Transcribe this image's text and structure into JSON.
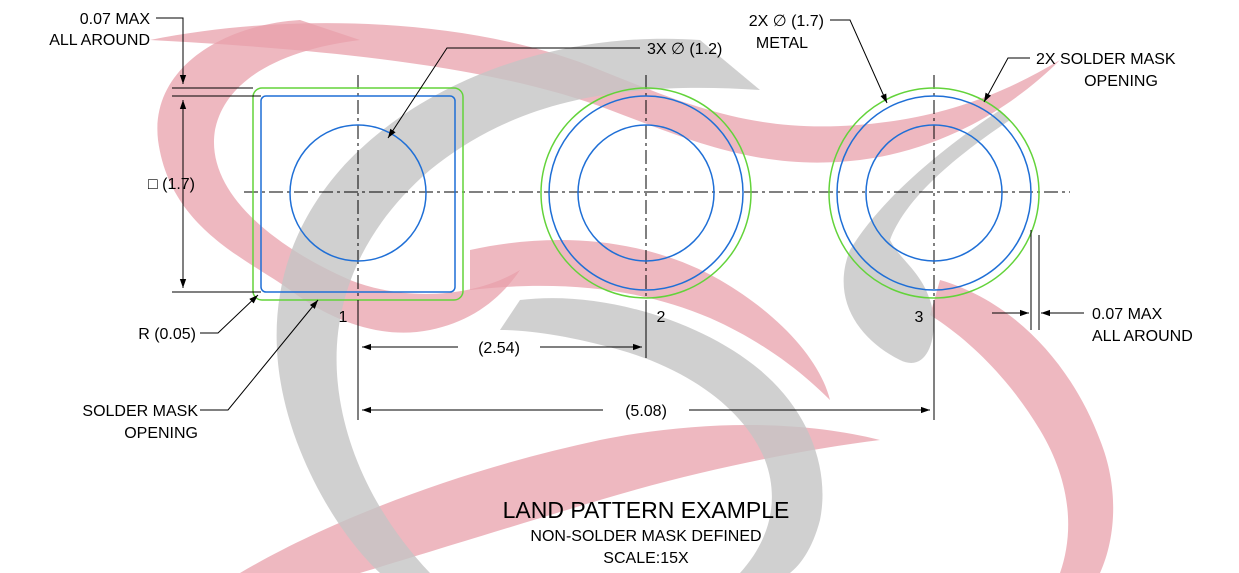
{
  "title": "LAND PATTERN EXAMPLE",
  "subtitle": "NON-SOLDER MASK DEFINED",
  "scale": "SCALE:15X",
  "colors": {
    "pad_metal": "#1f6fd6",
    "solder_mask": "#63d33a",
    "dimension_line": "#000000",
    "watermark_red": "#e8a0ab",
    "watermark_gray": "#c4c4c4"
  },
  "pins": [
    "1",
    "2",
    "3"
  ],
  "annotations": {
    "mask_max_top_1": "0.07 MAX",
    "mask_max_top_2": "ALL AROUND",
    "hole_dia": "3X ∅ (1.2)",
    "metal_dia_1": "2X ∅ (1.7)",
    "metal_dia_2": "METAL",
    "mask_opening_right_1": "2X SOLDER MASK",
    "mask_opening_right_2": "OPENING",
    "square_pad": "□ (1.7)",
    "corner_radius": "R (0.05)",
    "mask_opening_left_1": "SOLDER MASK",
    "mask_opening_left_2": "OPENING",
    "mask_max_right_1": "0.07 MAX",
    "mask_max_right_2": "ALL AROUND",
    "pitch": "(2.54)",
    "span": "(5.08)"
  }
}
